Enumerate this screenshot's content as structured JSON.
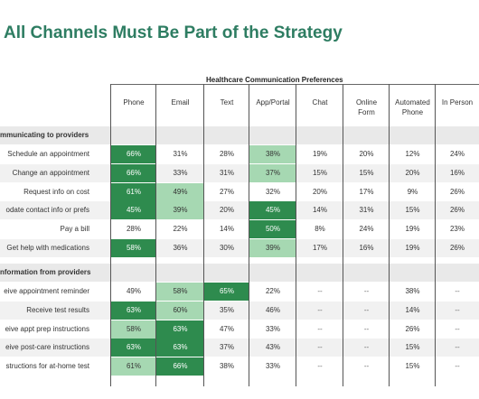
{
  "title": "All Channels Must Be Part of the Strategy",
  "group_header": "Healthcare Communication Preferences",
  "columns": [
    "Phone",
    "Email",
    "Text",
    "App/Portal",
    "Chat",
    "Online\nForm",
    "Automated\nPhone",
    "In Person"
  ],
  "colors": {
    "dark": "#2e8b4e",
    "light": "#a6d8b2",
    "title": "#2e7d62"
  },
  "sections": [
    {
      "label": "mmunicating to providers",
      "rows": [
        {
          "label": "Schedule an appointment",
          "values": [
            "66%",
            "31%",
            "28%",
            "38%",
            "19%",
            "20%",
            "12%",
            "24%"
          ],
          "shades": [
            "dark",
            "",
            "",
            "light",
            "",
            "",
            "",
            ""
          ]
        },
        {
          "label": "Change an appointment",
          "values": [
            "66%",
            "33%",
            "31%",
            "37%",
            "15%",
            "15%",
            "20%",
            "16%"
          ],
          "shades": [
            "dark",
            "",
            "",
            "light",
            "",
            "",
            "",
            ""
          ]
        },
        {
          "label": "Request info on cost",
          "values": [
            "61%",
            "49%",
            "27%",
            "32%",
            "20%",
            "17%",
            "9%",
            "26%"
          ],
          "shades": [
            "dark",
            "light",
            "",
            "",
            "",
            "",
            "",
            ""
          ]
        },
        {
          "label": "odate contact info or prefs",
          "values": [
            "45%",
            "39%",
            "20%",
            "45%",
            "14%",
            "31%",
            "15%",
            "26%"
          ],
          "shades": [
            "dark",
            "light",
            "",
            "dark",
            "",
            "",
            "",
            ""
          ]
        },
        {
          "label": "Pay a bill",
          "values": [
            "28%",
            "22%",
            "14%",
            "50%",
            "8%",
            "24%",
            "19%",
            "23%"
          ],
          "shades": [
            "",
            "",
            "",
            "dark",
            "",
            "",
            "",
            ""
          ]
        },
        {
          "label": "Get help with medications",
          "values": [
            "58%",
            "36%",
            "30%",
            "39%",
            "17%",
            "16%",
            "19%",
            "26%"
          ],
          "shades": [
            "dark",
            "",
            "",
            "light",
            "",
            "",
            "",
            ""
          ]
        }
      ]
    },
    {
      "label": "nformation from providers",
      "rows": [
        {
          "label": "eive appointment reminder",
          "values": [
            "49%",
            "58%",
            "65%",
            "22%",
            "--",
            "--",
            "38%",
            "--"
          ],
          "shades": [
            "",
            "light",
            "dark",
            "",
            "",
            "",
            "",
            ""
          ]
        },
        {
          "label": "Receive test results",
          "values": [
            "63%",
            "60%",
            "35%",
            "46%",
            "--",
            "--",
            "14%",
            "--"
          ],
          "shades": [
            "dark",
            "light",
            "",
            "",
            "",
            "",
            "",
            ""
          ]
        },
        {
          "label": "eive appt prep instructions",
          "values": [
            "58%",
            "63%",
            "47%",
            "33%",
            "--",
            "--",
            "26%",
            "--"
          ],
          "shades": [
            "light",
            "dark",
            "",
            "",
            "",
            "",
            "",
            ""
          ]
        },
        {
          "label": "eive post-care instructions",
          "values": [
            "63%",
            "63%",
            "37%",
            "43%",
            "--",
            "--",
            "15%",
            "--"
          ],
          "shades": [
            "dark",
            "dark",
            "",
            "",
            "",
            "",
            "",
            ""
          ]
        },
        {
          "label": "structions for at-home test",
          "values": [
            "61%",
            "66%",
            "38%",
            "33%",
            "--",
            "--",
            "15%",
            "--"
          ],
          "shades": [
            "light",
            "dark",
            "",
            "",
            "",
            "",
            "",
            ""
          ]
        }
      ]
    }
  ]
}
